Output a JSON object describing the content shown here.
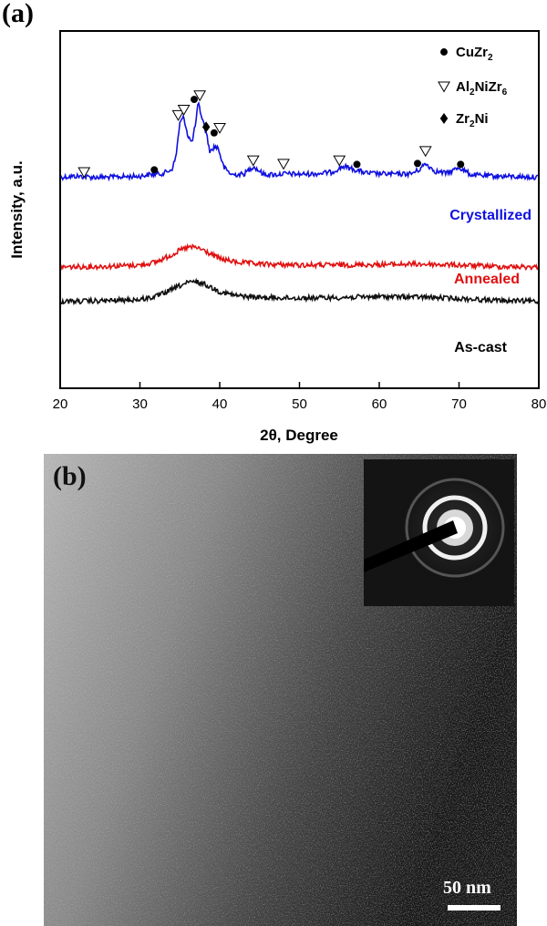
{
  "panel_a": {
    "label": "(a)"
  },
  "panel_b": {
    "label": "(b)",
    "scale_bar": "50 nm"
  },
  "chart_data": {
    "type": "line",
    "xlabel": "2θ, Degree",
    "ylabel": "Intensity, a.u.",
    "xlim": [
      20,
      80
    ],
    "xticks": [
      20,
      30,
      40,
      50,
      60,
      70,
      80
    ],
    "yticks": "none",
    "legend_placement": "top-right",
    "legend": [
      {
        "marker": "filled-circle",
        "label": "CuZr",
        "sub": "2"
      },
      {
        "marker": "open-triangle-down",
        "label": "Al",
        "sub": "2",
        "label2": "NiZr",
        "sub2": "6"
      },
      {
        "marker": "filled-diamond",
        "label": "Zr",
        "sub": "2",
        "label2": "Ni"
      }
    ],
    "series": [
      {
        "name": "Crystallized",
        "color": "#1010e0",
        "x": [
          20,
          22,
          24,
          26,
          28,
          30,
          31,
          32,
          33,
          34,
          34.5,
          35,
          35.5,
          36,
          36.5,
          37,
          37.3,
          37.8,
          38.3,
          38.8,
          39.3,
          39.8,
          40.5,
          41.5,
          43,
          44.2,
          45.5,
          47,
          48,
          50,
          52,
          54,
          55.5,
          57,
          58.5,
          60,
          62,
          64,
          65,
          65.8,
          67,
          68.5,
          70,
          71.5,
          73,
          75,
          77,
          80
        ],
        "y": [
          0.4,
          0.42,
          0.4,
          0.4,
          0.41,
          0.42,
          0.45,
          0.46,
          0.48,
          0.56,
          0.8,
          1.5,
          1.62,
          1.25,
          1.1,
          1.5,
          1.9,
          1.6,
          1.3,
          0.9,
          1.02,
          1.0,
          0.6,
          0.45,
          0.46,
          0.62,
          0.46,
          0.45,
          0.47,
          0.46,
          0.47,
          0.5,
          0.62,
          0.55,
          0.48,
          0.47,
          0.46,
          0.47,
          0.55,
          0.68,
          0.52,
          0.48,
          0.6,
          0.45,
          0.43,
          0.42,
          0.41,
          0.4
        ]
      },
      {
        "name": "Annealed",
        "color": "#e01010",
        "x": [
          20,
          25,
          30,
          32,
          34,
          35,
          36,
          37,
          38,
          39,
          40,
          42,
          45,
          50,
          55,
          60,
          65,
          70,
          75,
          80
        ],
        "y": [
          0.0,
          0.01,
          0.04,
          0.1,
          0.25,
          0.34,
          0.4,
          0.4,
          0.34,
          0.25,
          0.17,
          0.1,
          0.06,
          0.04,
          0.04,
          0.05,
          0.06,
          0.04,
          0.01,
          0.0
        ]
      },
      {
        "name": "As-cast",
        "color": "#101010",
        "x": [
          20,
          25,
          30,
          32,
          34,
          35,
          36,
          37,
          38,
          39,
          40,
          42,
          45,
          50,
          55,
          60,
          65,
          70,
          75,
          80
        ],
        "y": [
          -0.7,
          -0.69,
          -0.66,
          -0.6,
          -0.46,
          -0.38,
          -0.32,
          -0.3,
          -0.34,
          -0.42,
          -0.5,
          -0.58,
          -0.62,
          -0.63,
          -0.62,
          -0.6,
          -0.61,
          -0.64,
          -0.68,
          -0.7
        ]
      }
    ],
    "annotations": [
      {
        "marker": "open-triangle-down",
        "x": 23,
        "y": 0.5
      },
      {
        "marker": "filled-circle",
        "x": 31.8,
        "y": 0.55
      },
      {
        "marker": "open-triangle-down",
        "x": 34.8,
        "y": 1.66
      },
      {
        "marker": "open-triangle-down",
        "x": 35.5,
        "y": 1.77
      },
      {
        "marker": "filled-circle",
        "x": 36.8,
        "y": 1.98
      },
      {
        "marker": "open-triangle-down",
        "x": 37.5,
        "y": 2.06
      },
      {
        "marker": "filled-diamond",
        "x": 38.3,
        "y": 1.42
      },
      {
        "marker": "filled-circle",
        "x": 39.3,
        "y": 1.3
      },
      {
        "marker": "open-triangle-down",
        "x": 40.0,
        "y": 1.4
      },
      {
        "marker": "open-triangle-down",
        "x": 44.2,
        "y": 0.74
      },
      {
        "marker": "open-triangle-down",
        "x": 48.0,
        "y": 0.67
      },
      {
        "marker": "open-triangle-down",
        "x": 55.0,
        "y": 0.74
      },
      {
        "marker": "filled-circle",
        "x": 57.2,
        "y": 0.66
      },
      {
        "marker": "filled-circle",
        "x": 64.8,
        "y": 0.68
      },
      {
        "marker": "open-triangle-down",
        "x": 65.8,
        "y": 0.93
      },
      {
        "marker": "filled-circle",
        "x": 70.2,
        "y": 0.66
      }
    ]
  }
}
